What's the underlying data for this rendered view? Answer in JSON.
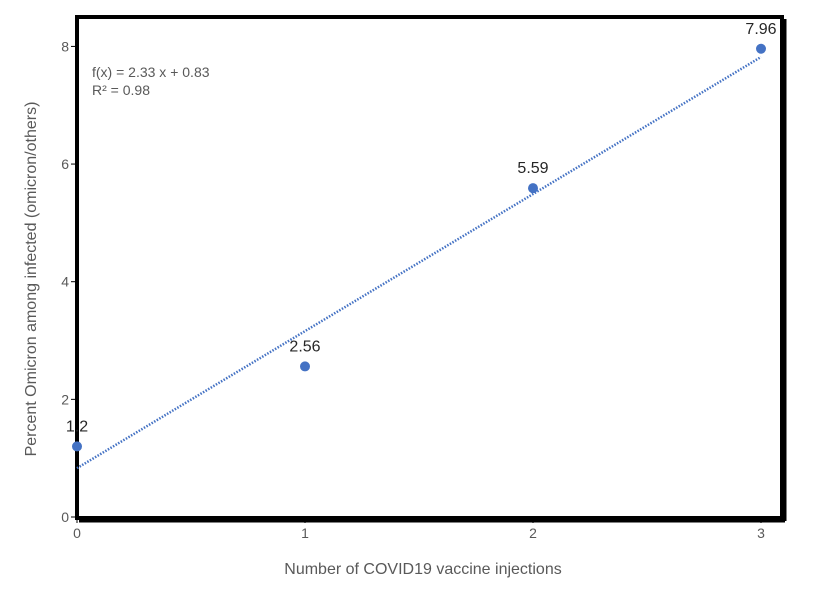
{
  "chart_data": {
    "type": "scatter",
    "title": "",
    "xlabel": "Number of COVID19 vaccine injections",
    "ylabel": "Percent Omicron among infected (omicron/others)",
    "xlim": [
      0,
      3
    ],
    "ylim": [
      0,
      8.5
    ],
    "x_ticks": [
      "0",
      "1",
      "2",
      "3"
    ],
    "y_ticks": [
      "0",
      "2",
      "4",
      "6",
      "8"
    ],
    "grid": false,
    "series": [
      {
        "name": "Percent Omicron",
        "color": "#4472c4",
        "x": [
          0,
          1,
          2,
          3
        ],
        "y": [
          1.2,
          2.56,
          5.59,
          7.96
        ],
        "labels": [
          "1.2",
          "2.56",
          "5.59",
          "7.96"
        ]
      }
    ],
    "trendline": {
      "type": "linear",
      "slope": 2.33,
      "intercept": 0.83,
      "x_range": [
        0,
        3
      ],
      "color": "#4472c4",
      "style": "dotted"
    },
    "annotations": {
      "equation": "f(x) = 2.33 x + 0.83",
      "r_squared": "R² = 0.98"
    }
  }
}
